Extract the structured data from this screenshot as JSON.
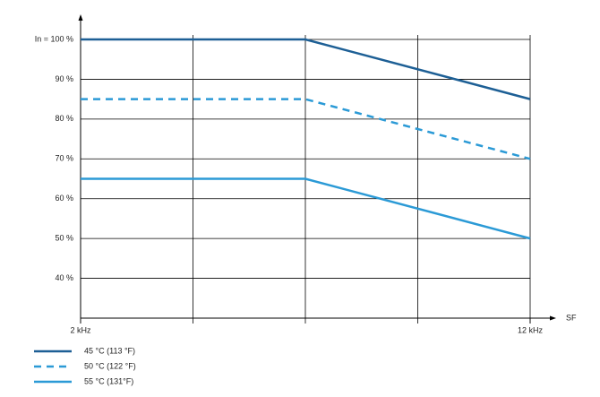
{
  "chart_data": {
    "type": "line",
    "x": [
      2,
      7,
      12
    ],
    "xlabel": "SF",
    "xlim": [
      2,
      12
    ],
    "xticks": [
      {
        "value": 2,
        "label": "2 kHz"
      },
      {
        "value": 12,
        "label": "12 kHz"
      }
    ],
    "xgrid": [
      2,
      4.5,
      7,
      9.5,
      12
    ],
    "ylim": [
      30,
      100
    ],
    "yticks": [
      {
        "value": 100,
        "label": "In = 100 %"
      },
      {
        "value": 90,
        "label": "90 %"
      },
      {
        "value": 80,
        "label": "80 %"
      },
      {
        "value": 70,
        "label": "70 %"
      },
      {
        "value": 60,
        "label": "60 %"
      },
      {
        "value": 50,
        "label": "50 %"
      },
      {
        "value": 40,
        "label": "40 %"
      }
    ],
    "grid": true,
    "legend": "bottom-left",
    "series": [
      {
        "name": "45 °C (113 °F)",
        "color": "#1d5f95",
        "style": "solid",
        "values": [
          100,
          100,
          85
        ]
      },
      {
        "name": "50 °C (122 °F)",
        "color": "#2b9ad6",
        "style": "dashed",
        "values": [
          85,
          85,
          70
        ]
      },
      {
        "name": "55 °C (131°F)",
        "color": "#2b9ad6",
        "style": "solid",
        "values": [
          65,
          65,
          50
        ]
      }
    ]
  }
}
